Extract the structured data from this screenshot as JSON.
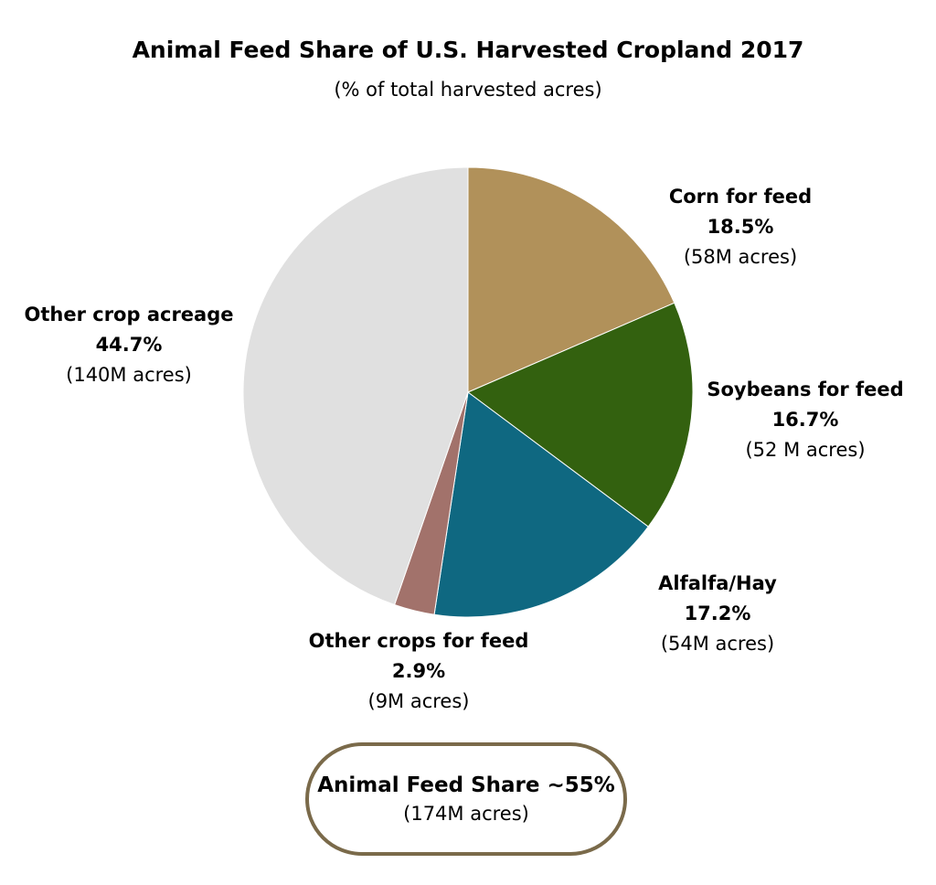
{
  "chart_data": {
    "type": "pie",
    "title": "Animal Feed Share of U.S. Harvested Cropland 2017",
    "subtitle": "(% of total harvested acres)",
    "slices": [
      {
        "name": "Corn for feed",
        "value": 18.5,
        "value_label": "18.5%",
        "acres_label": "(58M acres)",
        "color": "#b1915a"
      },
      {
        "name": "Soybeans for feed",
        "value": 16.7,
        "value_label": "16.7%",
        "acres_label": "(52 M acres)",
        "color": "#33610f"
      },
      {
        "name": "Alfalfa/Hay",
        "value": 17.2,
        "value_label": "17.2%",
        "acres_label": "(54M acres)",
        "color": "#0f6881"
      },
      {
        "name": "Other crops for feed",
        "value": 2.9,
        "value_label": "2.9%",
        "acres_label": "(9M acres)",
        "color": "#a2726b"
      },
      {
        "name": "Other crop acreage",
        "value": 44.7,
        "value_label": "44.7%",
        "acres_label": "(140M acres)",
        "color": "#e0e0e0"
      }
    ],
    "summary": {
      "title": "Animal Feed Share ~55%",
      "acres": "(174M acres)",
      "border_color": "#7a6a4a"
    }
  }
}
